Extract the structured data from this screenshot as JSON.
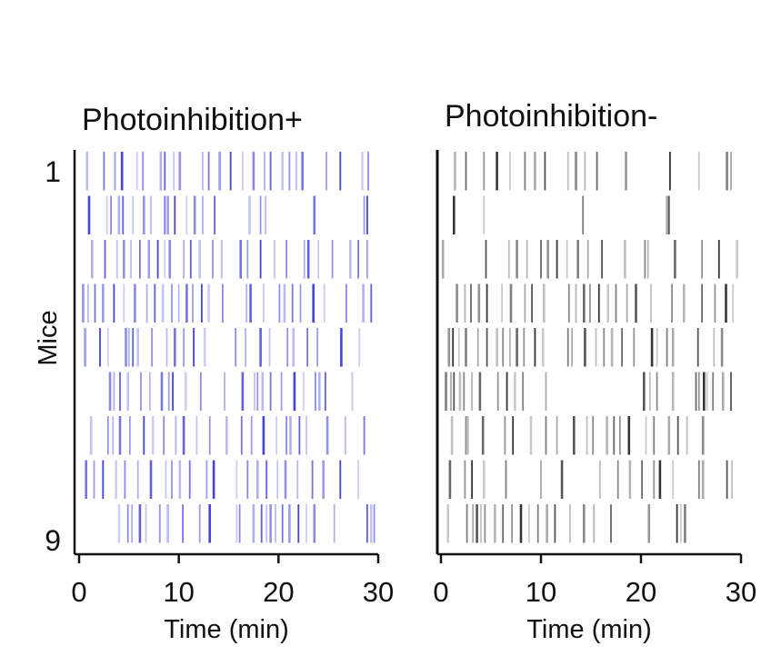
{
  "chart_data": [
    {
      "type": "raster",
      "title": "Photoinhibition+",
      "xlabel": "Time (min)",
      "ylabel": "Mice",
      "xlim": [
        0,
        30
      ],
      "xticks": [
        "0",
        "10",
        "20",
        "30"
      ],
      "row_labels": [
        "1",
        "",
        "",
        "",
        "",
        "",
        "",
        "",
        "9"
      ],
      "color": "#3a3ad8",
      "rows": [
        [
          0.8,
          2.5,
          3.6,
          4.3,
          5.8,
          6.4,
          8.2,
          8.6,
          9.5,
          10.1,
          12.4,
          13.0,
          14.1,
          15.2,
          16.4,
          17.5,
          18.6,
          19.2,
          20.4,
          21.1,
          21.8,
          22.4,
          24.8,
          26.2,
          28.4,
          29.0
        ],
        [
          1.0,
          2.8,
          3.2,
          4.0,
          4.4,
          5.4,
          6.5,
          7.2,
          8.6,
          8.9,
          9.6,
          10.8,
          11.6,
          12.4,
          13.6,
          17.1,
          18.2,
          18.7,
          23.6,
          28.6,
          28.9
        ],
        [
          1.3,
          2.6,
          3.8,
          4.5,
          5.2,
          6.1,
          7.0,
          7.9,
          8.6,
          9.1,
          10.5,
          11.2,
          12.1,
          13.4,
          14.3,
          16.2,
          16.9,
          18.2,
          19.6,
          20.8,
          22.6,
          23.0,
          24.0,
          25.4,
          27.2,
          28.0,
          28.9
        ],
        [
          0.4,
          0.9,
          1.6,
          2.4,
          3.5,
          4.5,
          5.6,
          6.8,
          7.6,
          8.4,
          9.3,
          10.0,
          10.8,
          11.4,
          12.3,
          13.0,
          14.4,
          16.8,
          17.2,
          18.5,
          20.1,
          20.6,
          21.4,
          22.2,
          23.5,
          24.6,
          26.8,
          28.5,
          29.3
        ],
        [
          0.6,
          2.1,
          2.9,
          4.7,
          5.0,
          5.4,
          5.9,
          7.3,
          8.8,
          9.6,
          10.5,
          11.5,
          12.6,
          15.7,
          16.7,
          18.2,
          19.1,
          20.9,
          21.5,
          22.9,
          23.9,
          26.3,
          28.1
        ],
        [
          3.1,
          3.5,
          4.1,
          4.9,
          6.2,
          7.1,
          8.3,
          9.0,
          9.4,
          10.7,
          12.2,
          14.6,
          16.4,
          17.6,
          17.9,
          18.4,
          19.2,
          20.3,
          21.6,
          22.5,
          23.7,
          24.1,
          24.7,
          27.4
        ],
        [
          1.2,
          2.9,
          3.4,
          4.1,
          5.1,
          6.5,
          7.4,
          8.5,
          9.7,
          10.5,
          11.8,
          13.1,
          14.8,
          16.3,
          17.3,
          18.5,
          19.8,
          20.8,
          21.2,
          22.1,
          22.8,
          24.9,
          26.7,
          28.6
        ],
        [
          0.7,
          1.5,
          2.4,
          3.7,
          4.6,
          5.9,
          7.2,
          8.7,
          9.3,
          10.1,
          11.1,
          12.8,
          13.5,
          15.8,
          16.9,
          17.9,
          18.8,
          19.9,
          20.7,
          21.9,
          23.4,
          24.5,
          26.2,
          28.0
        ],
        [
          4.0,
          4.9,
          5.3,
          6.1,
          6.7,
          8.1,
          8.9,
          10.4,
          12.1,
          13.1,
          15.8,
          16.1,
          17.5,
          18.3,
          18.8,
          19.2,
          19.7,
          20.4,
          21.1,
          22.0,
          22.8,
          23.6,
          25.6,
          28.9,
          29.3,
          29.6
        ]
      ]
    },
    {
      "type": "raster",
      "title": "Photoinhibition-",
      "xlabel": "Time (min)",
      "ylabel": "",
      "xlim": [
        0,
        30
      ],
      "xticks": [
        "0",
        "10",
        "20",
        "30"
      ],
      "color": "#2a2a2a",
      "rows": [
        [
          1.4,
          2.5,
          4.3,
          5.6,
          6.9,
          8.4,
          9.4,
          10.4,
          12.7,
          13.5,
          14.4,
          15.6,
          18.5,
          22.9,
          25.8,
          28.6,
          29.0
        ],
        [
          1.3,
          4.3,
          14.2,
          22.6,
          22.8
        ],
        [
          0.2,
          4.5,
          6.8,
          7.6,
          8.6,
          10.0,
          10.7,
          11.6,
          12.6,
          13.7,
          14.7,
          16.1,
          18.4,
          20.4,
          20.7,
          23.4,
          26.1,
          27.8,
          29.6
        ],
        [
          1.6,
          2.4,
          3.0,
          3.8,
          4.6,
          6.1,
          7.0,
          8.4,
          9.1,
          10.3,
          12.8,
          13.5,
          14.3,
          14.9,
          15.8,
          16.7,
          17.5,
          18.6,
          19.5,
          21.0,
          23.1,
          24.3,
          26.1,
          27.4,
          28.5,
          29.2
        ],
        [
          0.8,
          1.2,
          1.8,
          2.5,
          3.7,
          4.6,
          5.6,
          6.2,
          6.9,
          7.6,
          8.3,
          9.4,
          10.2,
          12.7,
          13.1,
          14.4,
          15.5,
          16.3,
          17.1,
          18.1,
          19.3,
          21.1,
          21.6,
          22.6,
          23.2,
          25.7,
          27.3,
          28.1
        ],
        [
          0.5,
          1.0,
          1.3,
          1.9,
          2.3,
          3.1,
          3.9,
          5.7,
          6.6,
          7.4,
          8.2,
          10.5,
          20.3,
          20.9,
          21.6,
          23.2,
          25.5,
          25.8,
          26.3,
          26.6,
          27.2,
          28.2,
          29.0
        ],
        [
          1.1,
          2.5,
          2.7,
          4.2,
          6.4,
          7.2,
          9.0,
          10.5,
          11.6,
          13.3,
          14.6,
          15.2,
          16.6,
          17.3,
          17.9,
          18.8,
          20.5,
          21.3,
          22.8,
          23.7,
          24.6,
          26.2
        ],
        [
          0.9,
          2.4,
          3.1,
          4.3,
          6.5,
          10.0,
          12.1,
          15.9,
          17.7,
          18.9,
          20.1,
          21.3,
          21.9,
          23.2,
          25.8,
          26.2,
          28.6,
          29.1
        ],
        [
          0.7,
          2.6,
          3.2,
          3.6,
          4.0,
          4.4,
          5.4,
          6.2,
          7.1,
          8.0,
          8.8,
          9.7,
          10.6,
          11.4,
          12.9,
          14.3,
          15.3,
          17.0,
          20.8,
          23.6,
          24.0,
          24.4
        ]
      ]
    }
  ]
}
